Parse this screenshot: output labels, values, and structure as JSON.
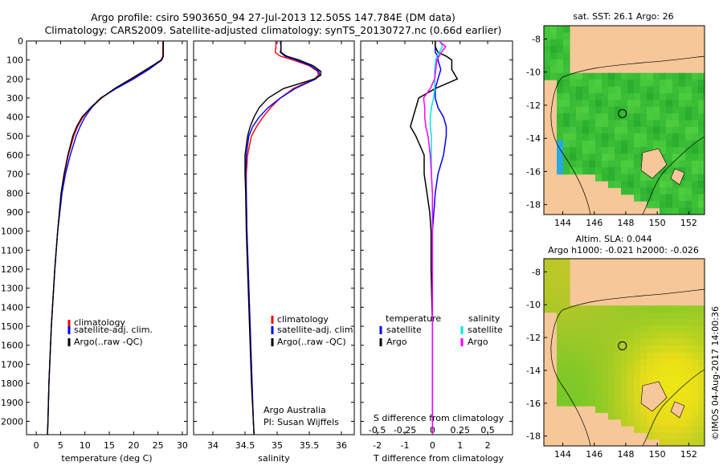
{
  "header": {
    "title_line1": "Argo profile: csiro 5903650_94 27-Jul-2013 12.505S 147.784E (DM data)",
    "title_line2": "Climatology: CARS2009. Satellite-adjusted climatology: synTS_20130727.nc (0.66d earlier)"
  },
  "colors": {
    "climatology": "#ff0000",
    "satellite": "#0000ff",
    "argo": "#000000",
    "salinity_satellite": "#00e5e5",
    "salinity_argo": "#ff00ff",
    "land": "#f6c799",
    "ocean_green": "#44c23a"
  },
  "legend_ts": {
    "climatology": "climatology",
    "satellite": "satellite-adj. clim.",
    "argo": "Argo(..raw -QC)"
  },
  "legend_diff": {
    "temperature": "temperature",
    "salinity": "salinity",
    "satellite": "satellite",
    "argo": "Argo"
  },
  "credits": {
    "org": "Argo Australia",
    "pi": "PI: Susan Wijffels",
    "imos": "©IMOS 04-Aug-2017 14:00:36"
  },
  "maps": {
    "sst_title": "sat. SST: 26.1  Argo: 26",
    "sla_title1": "Altim. SLA: 0.044",
    "sla_title2": "Argo h1000: -0.021 h2000: -0.026",
    "lon_ticks": [
      144,
      146,
      148,
      150,
      152
    ],
    "lat_ticks": [
      -8,
      -10,
      -12,
      -14,
      -16,
      -18
    ],
    "lon_range": [
      142.8,
      153.0
    ],
    "lat_range": [
      -18.6,
      -7.2
    ],
    "float_position": {
      "lon": 147.784,
      "lat": -12.505
    }
  },
  "chart_data": [
    {
      "type": "line",
      "name": "temperature",
      "xlabel": "temperature (deg C)",
      "ylabel": "",
      "xlim": [
        -2,
        31
      ],
      "ylim": [
        2070,
        0
      ],
      "xticks": [
        0,
        5,
        10,
        15,
        20,
        25,
        30
      ],
      "yticks": [
        0,
        100,
        200,
        300,
        400,
        500,
        600,
        700,
        800,
        900,
        1000,
        1100,
        1200,
        1300,
        1400,
        1500,
        1600,
        1700,
        1800,
        1900,
        2000
      ],
      "depth": [
        0,
        20,
        50,
        80,
        100,
        150,
        200,
        250,
        300,
        350,
        400,
        450,
        500,
        600,
        700,
        800,
        1000,
        1200,
        1500,
        1800,
        2000,
        2070
      ],
      "series": [
        {
          "name": "climatology",
          "values": [
            26.0,
            26.0,
            26.0,
            26.0,
            25.6,
            22.8,
            19.8,
            16.3,
            13.2,
            11.2,
            9.6,
            8.5,
            7.7,
            6.6,
            5.8,
            5.2,
            4.4,
            3.8,
            3.1,
            2.6,
            2.4,
            2.3
          ]
        },
        {
          "name": "satellite-adj. clim.",
          "values": [
            26.1,
            26.1,
            26.1,
            26.1,
            25.8,
            23.1,
            20.0,
            16.4,
            13.3,
            11.4,
            10.0,
            9.0,
            8.2,
            7.0,
            6.0,
            5.3,
            4.4,
            3.8,
            3.1,
            2.6,
            2.4,
            2.3
          ]
        },
        {
          "name": "Argo(..raw -QC)",
          "values": [
            26.1,
            26.1,
            26.1,
            26.1,
            25.7,
            22.6,
            19.4,
            16.1,
            13.4,
            11.2,
            9.4,
            8.3,
            7.5,
            6.5,
            5.7,
            5.1,
            4.4,
            3.8,
            3.1,
            2.6,
            2.4,
            2.3
          ]
        }
      ]
    },
    {
      "type": "line",
      "name": "salinity",
      "xlabel": "salinity",
      "ylabel": "",
      "xlim": [
        33.7,
        36.2
      ],
      "ylim": [
        2070,
        0
      ],
      "xticks": [
        34,
        34.5,
        35,
        35.5,
        36
      ],
      "depth": [
        0,
        30,
        60,
        80,
        100,
        130,
        160,
        180,
        200,
        250,
        300,
        350,
        400,
        450,
        500,
        600,
        700,
        800,
        1000,
        1200,
        1500,
        1800,
        2000,
        2070
      ],
      "series": [
        {
          "name": "climatology",
          "values": [
            34.98,
            34.98,
            34.97,
            35.05,
            35.25,
            35.5,
            35.63,
            35.64,
            35.58,
            35.25,
            35.05,
            34.9,
            34.78,
            34.68,
            34.6,
            34.54,
            34.52,
            34.52,
            34.53,
            34.55,
            34.58,
            34.61,
            34.63,
            34.64
          ]
        },
        {
          "name": "satellite-adj. clim.",
          "values": [
            35.05,
            35.06,
            35.05,
            35.12,
            35.3,
            35.52,
            35.65,
            35.66,
            35.6,
            35.28,
            35.05,
            34.86,
            34.72,
            34.62,
            34.56,
            34.52,
            34.51,
            34.52,
            34.53,
            34.55,
            34.58,
            34.61,
            34.63,
            34.64
          ]
        },
        {
          "name": "Argo(..raw -QC)",
          "values": [
            35.06,
            35.06,
            35.06,
            35.15,
            35.34,
            35.56,
            35.68,
            35.68,
            35.58,
            35.1,
            34.86,
            34.72,
            34.64,
            34.58,
            34.54,
            34.5,
            34.5,
            34.51,
            34.52,
            34.54,
            34.57,
            34.6,
            34.63,
            34.64
          ]
        }
      ]
    },
    {
      "type": "line",
      "name": "difference",
      "xlabel": "T difference from climatology",
      "xlabel_top": "S difference from climatology",
      "xlim": [
        -2.6,
        2.9
      ],
      "ylim": [
        2070,
        0
      ],
      "xticks_T": [
        -2,
        -1,
        0,
        1,
        2
      ],
      "xticks_S": [
        -0.5,
        -0.25,
        0,
        0.25,
        0.5
      ],
      "depth": [
        0,
        30,
        60,
        80,
        100,
        150,
        200,
        250,
        300,
        350,
        400,
        450,
        500,
        600,
        700,
        800,
        900,
        1000,
        1200,
        1500,
        1800,
        2000,
        2070
      ],
      "series": [
        {
          "name": "temperature satellite",
          "values": [
            0.1,
            0.1,
            0.1,
            0.2,
            0.2,
            0.3,
            0.2,
            0.1,
            0.1,
            0.2,
            0.4,
            0.5,
            0.5,
            0.4,
            0.2,
            0.1,
            0.05,
            0.0,
            0.0,
            0.0,
            0.0,
            0.0,
            0.0
          ]
        },
        {
          "name": "temperature Argo",
          "values": [
            0.1,
            0.1,
            0.2,
            0.5,
            0.7,
            0.7,
            0.9,
            0.1,
            -0.5,
            -0.6,
            -0.7,
            -0.8,
            -0.6,
            -0.3,
            -0.3,
            -0.2,
            -0.1,
            -0.05,
            -0.05,
            0.0,
            0.0,
            0.0,
            0.0
          ]
        },
        {
          "name": "salinity satellite",
          "values": [
            0.07,
            0.09,
            0.06,
            0.04,
            0.03,
            0.02,
            0.02,
            0.02,
            0.01,
            -0.01,
            -0.02,
            -0.02,
            -0.01,
            -0.01,
            -0.01,
            0.0,
            0.0,
            0.0,
            0.0,
            0.0,
            0.0,
            0.0,
            0.0
          ]
        },
        {
          "name": "salinity Argo",
          "values": [
            0.06,
            0.12,
            0.08,
            0.06,
            0.04,
            0.03,
            0.02,
            -0.02,
            -0.08,
            -0.07,
            -0.07,
            -0.06,
            -0.04,
            -0.02,
            -0.01,
            0.0,
            0.0,
            0.0,
            0.0,
            0.0,
            0.0,
            0.0,
            0.0
          ]
        }
      ]
    }
  ]
}
